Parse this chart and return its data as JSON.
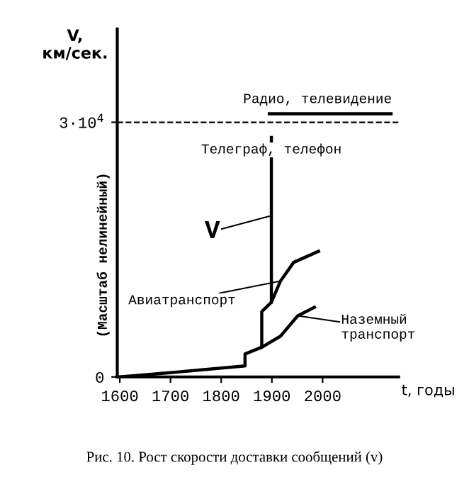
{
  "chart_data": {
    "type": "line",
    "xlabel": "t, годы",
    "ylabel": "V,\nкм/сек.",
    "xlim": [
      1595,
      2150
    ],
    "xticks": [
      1600,
      1700,
      1800,
      1900,
      2000
    ],
    "ylim": [
      0,
      41000
    ],
    "yticks": [
      0,
      {
        "value": 30000,
        "label": "3·10$^{4}$"
      }
    ],
    "grid": false,
    "marker": "none",
    "line_style": "solid",
    "series": [
      {
        "color": "#000000",
        "x": [
          1600,
          1700,
          1847,
          1847,
          1880,
          1880,
          1899,
          1899
        ],
        "values": [
          0,
          500,
          1300,
          2700,
          3500,
          7700,
          8800,
          28200
        ]
      },
      {
        "color": "#000000",
        "x": [
          1895,
          2135
        ],
        "values": [
          31000,
          31000
        ]
      },
      {
        "color": "#000000",
        "x": [
          1899,
          1917,
          1943,
          1992
        ],
        "values": [
          8800,
          11300,
          13500,
          14800
        ]
      },
      {
        "color": "#000000",
        "x": [
          1880,
          1917,
          1951,
          1984
        ],
        "values": [
          3500,
          4800,
          7200,
          8200
        ]
      }
    ],
    "ref_lines": [
      {
        "axis": "y",
        "value": 30000,
        "line_style": "dashed",
        "color": "#000000"
      }
    ],
    "annotations": [
      {
        "text": "Радио, телевидение",
        "x": 1990,
        "y": 31000
      },
      {
        "text": "Телеграф, телефон",
        "x": 1899,
        "y": 28200
      },
      {
        "text": "V",
        "x": 1899,
        "y": 19000
      },
      {
        "text": "Авиатранспорт",
        "x": 1917,
        "y": 11300
      },
      {
        "text": "Наземный\nтранспорт",
        "x": 1951,
        "y": 7200
      },
      "(Масштаб нелинейный)",
      "Рис. 10. Рост скорости доставки сообщений (v)"
    ]
  }
}
